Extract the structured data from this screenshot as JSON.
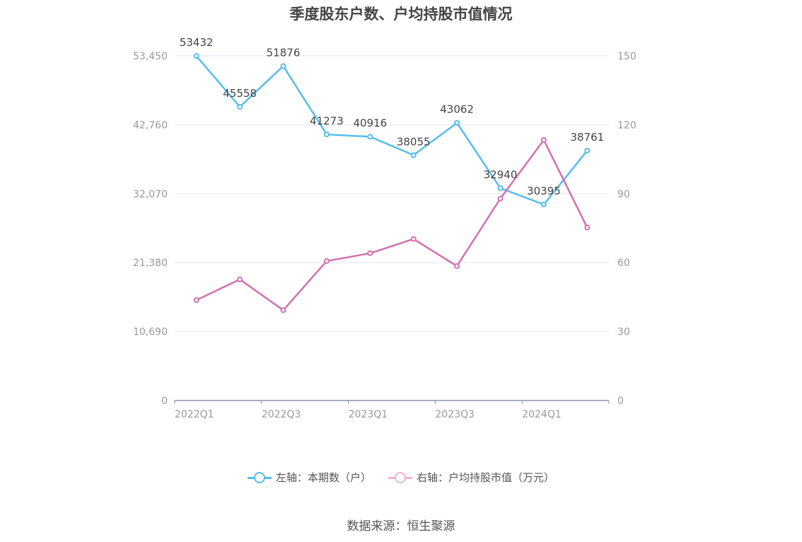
{
  "chart_data": {
    "type": "line",
    "title": "季度股东户数、户均持股市值情况",
    "x": [
      "2022Q1",
      "2022Q2",
      "2022Q3",
      "2022Q4",
      "2023Q1",
      "2023Q2",
      "2023Q3",
      "2023Q4",
      "2024Q1",
      "2024Q2"
    ],
    "x_tick_labels": [
      "2022Q1",
      "2022Q3",
      "2023Q1",
      "2023Q3",
      "2024Q1"
    ],
    "y_left": {
      "ticks": [
        "0",
        "10,690",
        "21,380",
        "32,070",
        "42,760",
        "53,450"
      ],
      "range": [
        0,
        53450
      ]
    },
    "y_right": {
      "ticks": [
        "0",
        "30",
        "60",
        "90",
        "120",
        "150"
      ],
      "range": [
        0,
        150
      ]
    },
    "series": [
      {
        "name": "左轴：本期数（户）",
        "axis": "left",
        "color": "#55bdf0",
        "values": [
          53432,
          45558,
          51876,
          41273,
          40916,
          38055,
          43062,
          32940,
          30395,
          38761
        ],
        "labels": [
          "53432",
          "45558",
          "51876",
          "41273",
          "40916",
          "38055",
          "43062",
          "32940",
          "30395",
          "38761"
        ]
      },
      {
        "name": "右轴：户均持股市值（万元）",
        "axis": "right",
        "color": "#d46fb1",
        "values": [
          43.7,
          52.7,
          39.3,
          60.7,
          64.1,
          70.3,
          58.5,
          87.9,
          113.4,
          75.3
        ]
      }
    ],
    "grid": true,
    "legend_position": "bottom-center"
  },
  "source": "数据来源：恒生聚源"
}
